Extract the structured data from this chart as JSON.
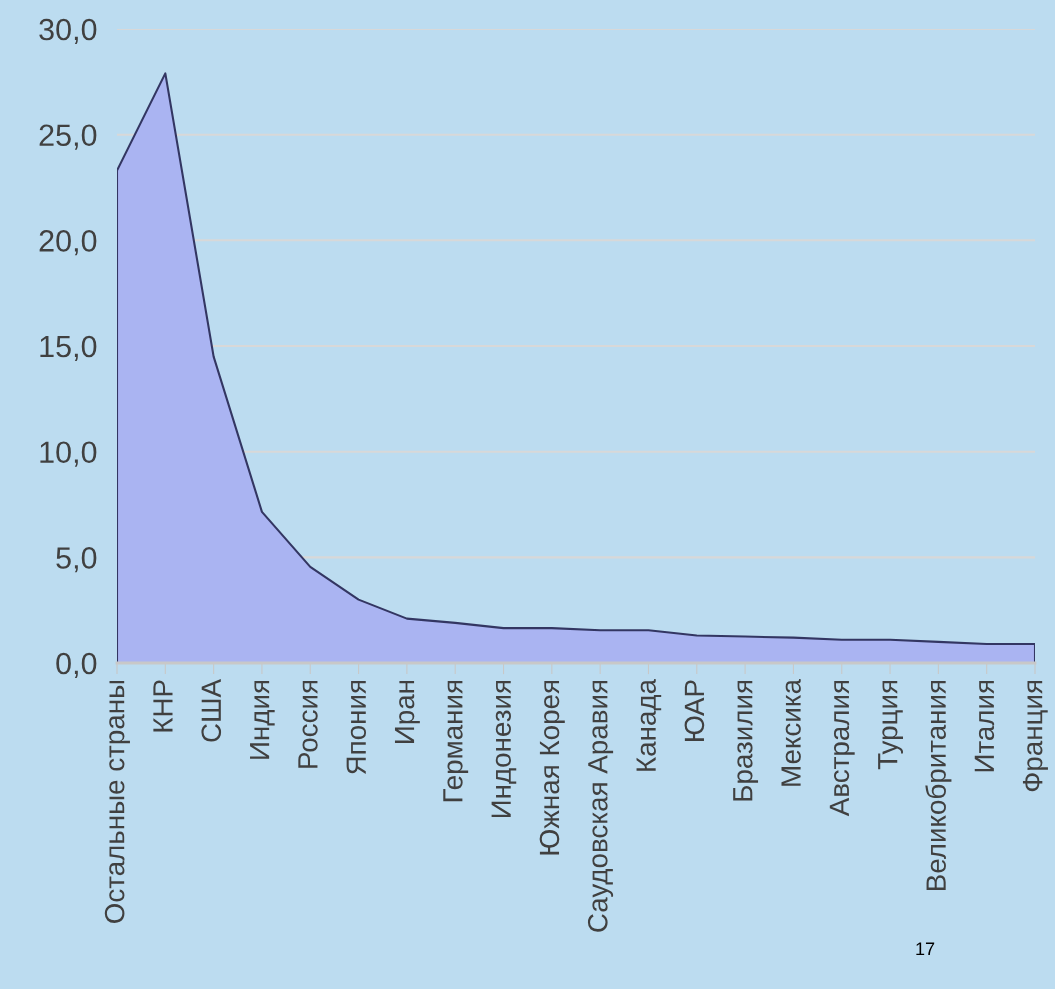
{
  "chart_data": {
    "type": "area",
    "categories": [
      "Остальные страны",
      "КНР",
      "США",
      "Индия",
      "Россия",
      "Япония",
      "Иран",
      "Германия",
      "Индонезия",
      "Южная Корея",
      "Саудовская Аравия",
      "Канада",
      "ЮАР",
      "Бразилия",
      "Мексика",
      "Австралия",
      "Турция",
      "Великобритания",
      "Италия",
      "Франция"
    ],
    "series": [
      {
        "color": "#aab4f2",
        "values": [
          23.3,
          27.9,
          14.5,
          7.15,
          4.55,
          3.0,
          2.1,
          1.9,
          1.65,
          1.65,
          1.55,
          1.55,
          1.3,
          1.25,
          1.2,
          1.1,
          1.1,
          1.0,
          0.9,
          0.9
        ]
      }
    ],
    "ylim": [
      0,
      30
    ],
    "yticks": [
      {
        "value": 0,
        "label": "0,0"
      },
      {
        "value": 5,
        "label": "5,0"
      },
      {
        "value": 10,
        "label": "10,0"
      },
      {
        "value": 15,
        "label": "15,0"
      },
      {
        "value": 20,
        "label": "20,0"
      },
      {
        "value": 25,
        "label": "25,0"
      },
      {
        "value": 30,
        "label": "30,0"
      }
    ],
    "grid": "y",
    "legend": false,
    "annotations": [
      "17"
    ]
  }
}
